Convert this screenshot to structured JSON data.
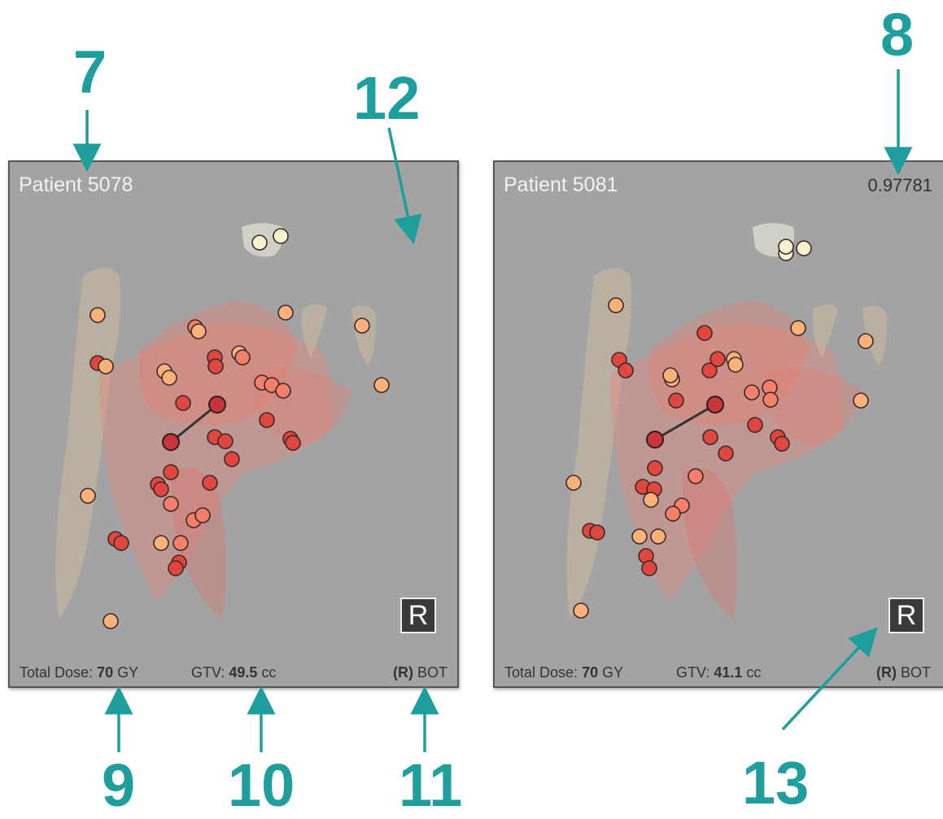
{
  "colors": {
    "callout": "#1f9e9e",
    "panel_bg": "#a3a3a3",
    "node_red": "#e0473f",
    "node_orange": "#f47f6b",
    "node_peach": "#fbb27a",
    "node_pale": "#f7f3cf"
  },
  "callouts": [
    "7",
    "8",
    "9",
    "10",
    "11",
    "12",
    "13"
  ],
  "panels": [
    {
      "title": "Patient 5078",
      "score": "",
      "dose_label": "Total Dose:",
      "dose_value": "70",
      "dose_unit": "GY",
      "gtv_label": "GTV:",
      "gtv_value": "49.5",
      "gtv_unit": "cc",
      "side": "(R)",
      "site": "BOT",
      "badge": "R"
    },
    {
      "title": "Patient 5081",
      "score": "0.97781",
      "dose_label": "Total Dose:",
      "dose_value": "70",
      "dose_unit": "GY",
      "gtv_label": "GTV:",
      "gtv_value": "41.1",
      "gtv_unit": "cc",
      "side": "(R)",
      "site": "BOT",
      "badge": "R"
    }
  ]
}
